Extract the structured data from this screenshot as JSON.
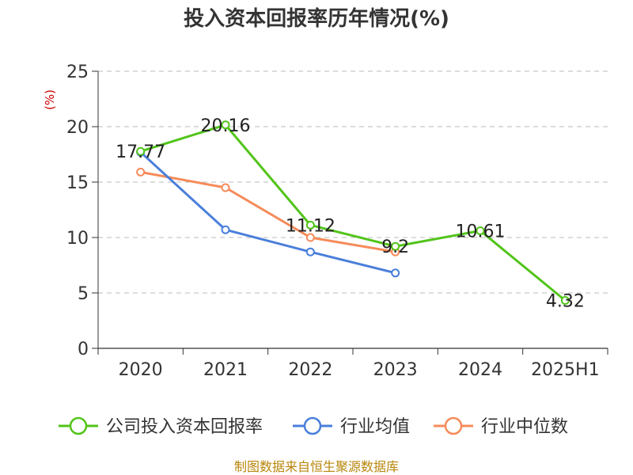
{
  "chart_data": {
    "type": "line",
    "title": "投入资本回报率历年情况(%)",
    "ylabel": "(%)",
    "xlabel": "",
    "categories": [
      "2020",
      "2021",
      "2022",
      "2023",
      "2024",
      "2025H1"
    ],
    "ylim": [
      0,
      25
    ],
    "yticks": [
      0,
      5,
      10,
      15,
      20,
      25
    ],
    "grid": true,
    "legend_position": "bottom",
    "series": [
      {
        "name": "公司投入资本回报率",
        "color": "#52c41a",
        "values": [
          17.77,
          20.16,
          11.12,
          9.2,
          10.61,
          4.32
        ],
        "labels": [
          "17.77",
          "20.16",
          "11.12",
          "9.2",
          "10.61",
          "4.32"
        ]
      },
      {
        "name": "行业均值",
        "color": "#4a7fdb",
        "values": [
          17.7,
          10.7,
          8.7,
          6.8,
          null,
          null
        ]
      },
      {
        "name": "行业中位数",
        "color": "#f58b5a",
        "values": [
          15.9,
          14.5,
          10.0,
          8.7,
          null,
          null
        ]
      }
    ]
  },
  "source": "制图数据来自恒生聚源数据库"
}
